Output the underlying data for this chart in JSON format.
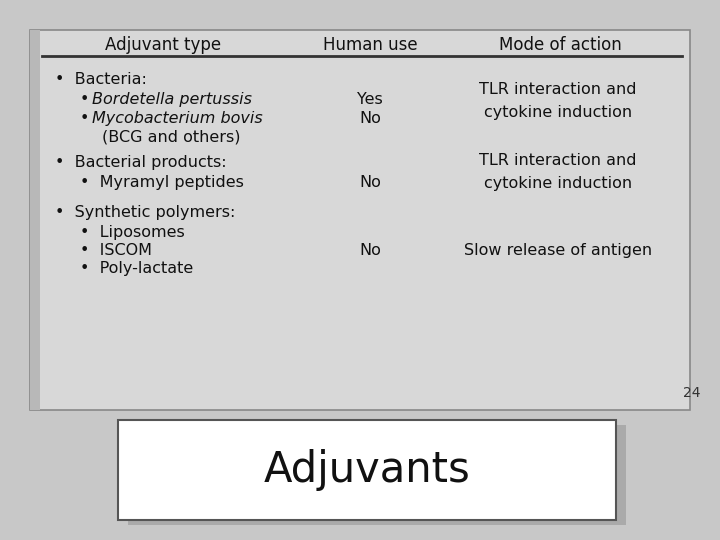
{
  "title": "Adjuvants",
  "bg_color": "#c8c8c8",
  "title_box_bg": "#ffffff",
  "title_box_edge": "#555555",
  "content_box_bg": "#d8d8d8",
  "content_box_edge": "#888888",
  "shadow_color": "#aaaaaa",
  "left_bar_color": "#b8b8b8",
  "header_col1": "Adjuvant type",
  "header_col2": "Human use",
  "header_col3": "Mode of action",
  "text_color": "#111111",
  "page_number": "24",
  "title_fontsize": 30,
  "header_fontsize": 12,
  "body_fontsize": 11.5
}
